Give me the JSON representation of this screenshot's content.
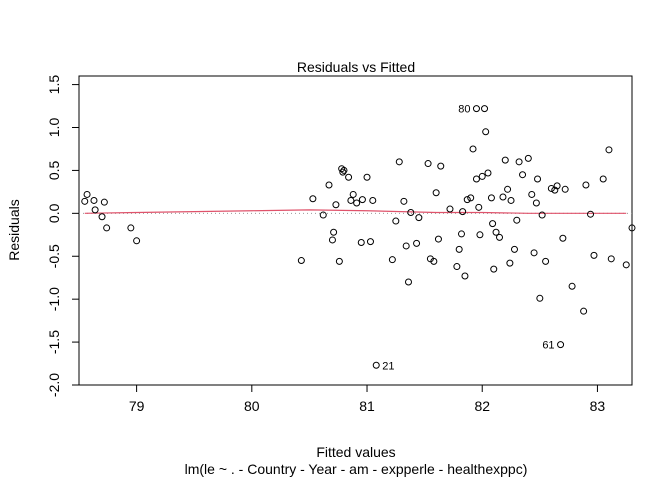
{
  "chart_data": {
    "type": "scatter",
    "title": "Residuals vs Fitted",
    "xlabel": "Fitted values",
    "subtitle": "lm(le ~ . - Country - Year - am - expperle - healthexppc)",
    "ylabel": "Residuals",
    "xlim": [
      78.5,
      83.3
    ],
    "ylim": [
      -2.0,
      1.6
    ],
    "x_ticks": [
      "79",
      "80",
      "81",
      "82",
      "83"
    ],
    "x_tick_values": [
      79,
      80,
      81,
      82,
      83
    ],
    "y_ticks": [
      "-2.0",
      "-1.5",
      "-1.0",
      "-0.5",
      "0.0",
      "0.5",
      "1.0",
      "1.5"
    ],
    "y_tick_values": [
      -2.0,
      -1.5,
      -1.0,
      -0.5,
      0.0,
      0.5,
      1.0,
      1.5
    ],
    "grid": false,
    "reference_line": {
      "y": 0,
      "style": "dotted",
      "color": "#999999"
    },
    "smoother": {
      "color": "#df536b",
      "x": [
        78.55,
        79.0,
        79.5,
        80.0,
        80.5,
        81.0,
        81.3,
        81.6,
        82.0,
        82.4,
        82.8,
        83.25
      ],
      "y": [
        0.0,
        0.01,
        0.02,
        0.03,
        0.04,
        0.03,
        0.02,
        0.01,
        0.01,
        0.0,
        0.0,
        0.0
      ]
    },
    "points": {
      "x": [
        78.55,
        78.57,
        78.63,
        78.64,
        78.7,
        78.72,
        78.74,
        78.95,
        79.0,
        80.43,
        80.53,
        80.62,
        80.67,
        80.7,
        80.71,
        80.73,
        80.76,
        80.78,
        80.79,
        80.8,
        80.84,
        80.86,
        80.88,
        80.91,
        80.95,
        80.96,
        81.0,
        81.03,
        81.05,
        81.22,
        81.25,
        81.28,
        81.32,
        81.34,
        81.36,
        81.38,
        81.43,
        81.45,
        81.53,
        81.55,
        81.58,
        81.6,
        81.62,
        81.64,
        81.72,
        81.78,
        81.8,
        81.82,
        81.83,
        81.85,
        81.87,
        81.9,
        81.92,
        81.95,
        81.97,
        81.98,
        82.0,
        82.02,
        82.03,
        82.05,
        82.08,
        82.09,
        82.1,
        82.12,
        82.15,
        82.18,
        82.2,
        82.22,
        82.24,
        82.25,
        82.28,
        82.3,
        82.32,
        82.35,
        82.4,
        82.43,
        82.45,
        82.47,
        82.48,
        82.5,
        82.52,
        82.55,
        82.6,
        82.63,
        82.65,
        82.7,
        82.72,
        82.78,
        82.88,
        82.9,
        82.94,
        82.97,
        83.05,
        83.1,
        83.12,
        83.25,
        83.3
      ],
      "y": [
        0.14,
        0.22,
        0.15,
        0.04,
        -0.04,
        0.13,
        -0.17,
        -0.17,
        -0.32,
        -0.55,
        0.17,
        -0.02,
        0.33,
        -0.31,
        -0.22,
        0.1,
        -0.56,
        0.52,
        0.48,
        0.5,
        0.42,
        0.15,
        0.22,
        0.12,
        -0.34,
        0.16,
        0.42,
        -0.33,
        0.15,
        -0.54,
        -0.09,
        0.6,
        0.14,
        -0.38,
        -0.8,
        0.01,
        -0.35,
        -0.05,
        0.58,
        -0.53,
        -0.56,
        0.24,
        -0.3,
        0.55,
        0.05,
        -0.62,
        -0.42,
        -0.24,
        0.02,
        -0.73,
        0.16,
        0.18,
        0.75,
        0.4,
        0.07,
        -0.25,
        0.43,
        1.22,
        0.95,
        0.47,
        0.18,
        -0.12,
        -0.65,
        -0.22,
        -0.28,
        0.19,
        0.62,
        0.28,
        -0.58,
        0.15,
        -0.42,
        -0.08,
        0.6,
        0.45,
        0.64,
        0.22,
        -0.46,
        0.12,
        0.4,
        -0.99,
        -0.02,
        -0.56,
        0.29,
        0.27,
        0.32,
        -0.29,
        0.28,
        -0.85,
        -1.14,
        0.33,
        -0.01,
        -0.49,
        0.4,
        0.74,
        -0.53,
        -0.6,
        -0.17
      ],
      "labeled": [
        {
          "x": 81.08,
          "y": -1.77,
          "label": "21"
        },
        {
          "x": 82.68,
          "y": -1.53,
          "label": "61"
        },
        {
          "x": 81.95,
          "y": 1.22,
          "label": "80"
        }
      ]
    }
  }
}
